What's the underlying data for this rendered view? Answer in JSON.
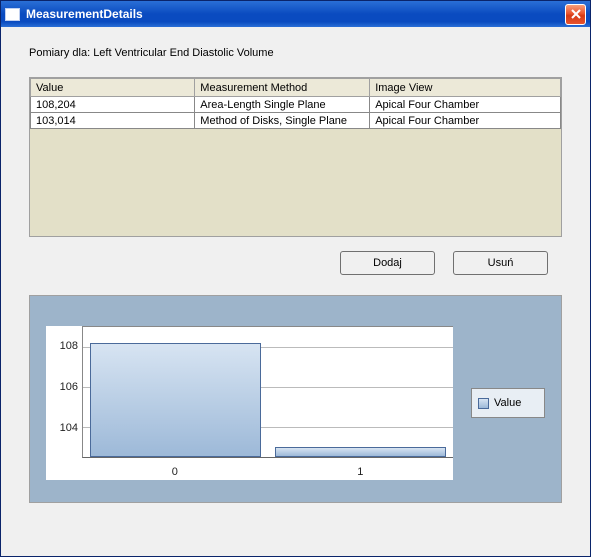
{
  "window": {
    "title": "MeasurementDetails"
  },
  "header_label": "Pomiary dla: Left Ventricular End Diastolic Volume",
  "table": {
    "columns": [
      "Value",
      "Measurement Method",
      "Image View"
    ],
    "rows": [
      [
        "108,204",
        "Area-Length Single Plane",
        "Apical Four Chamber"
      ],
      [
        "103,014",
        "Method of Disks, Single Plane",
        "Apical Four Chamber"
      ]
    ],
    "col_widths_pct": [
      31,
      33,
      36
    ],
    "header_bg": "#ece9d8",
    "panel_bg": "#e3e0c8"
  },
  "buttons": {
    "add": "Dodaj",
    "remove": "Usuń"
  },
  "chart": {
    "type": "bar",
    "categories": [
      "0",
      "1"
    ],
    "values": [
      108.2,
      103.0
    ],
    "ylim": [
      102.5,
      109
    ],
    "yticks": [
      104,
      106,
      108
    ],
    "bar_gradient_top": "#d7e4f2",
    "bar_gradient_bottom": "#9db9d8",
    "bar_border": "#4a6a9a",
    "panel_bg": "#9db4ca",
    "grid_color": "#bbbbbb",
    "legend_label": "Value",
    "legend_bg": "#e8eef4",
    "axis_fontsize": 11
  }
}
